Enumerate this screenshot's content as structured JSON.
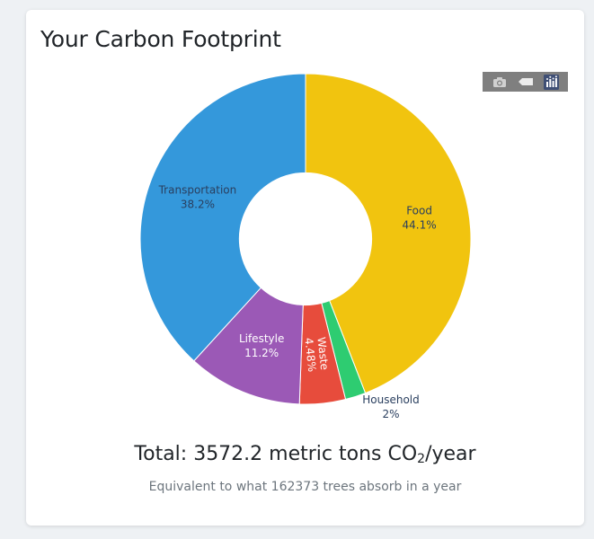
{
  "card": {
    "title": "Your Carbon Footprint"
  },
  "modebar": {
    "icons": [
      "camera-icon",
      "autoscale-icon",
      "plotly-logo-icon"
    ]
  },
  "summary": {
    "total_prefix": "Total: 3572.2 metric tons CO",
    "total_sub": "2",
    "total_suffix": "/year",
    "equivalent": "Equivalent to what 162373 trees absorb in a year"
  },
  "chart_data": {
    "type": "pie",
    "hole": 0.4,
    "direction": "clockwise",
    "start_angle_deg": 0,
    "slices": [
      {
        "label": "Food",
        "value": 44.1,
        "text": "44.1%",
        "color": "#f1c40f",
        "text_color": "#2a3f5f"
      },
      {
        "label": "Household",
        "value": 2,
        "text": "2%",
        "color": "#2ecc71",
        "text_color": "#2a3f5f"
      },
      {
        "label": "Waste",
        "value": 4.48,
        "text": "4.48%",
        "color": "#e74c3c",
        "text_color": "#ffffff"
      },
      {
        "label": "Lifestyle",
        "value": 11.2,
        "text": "11.2%",
        "color": "#9b59b6",
        "text_color": "#ffffff"
      },
      {
        "label": "Transportation",
        "value": 38.2,
        "text": "38.2%",
        "color": "#3498db",
        "text_color": "#2a3f5f"
      }
    ]
  }
}
